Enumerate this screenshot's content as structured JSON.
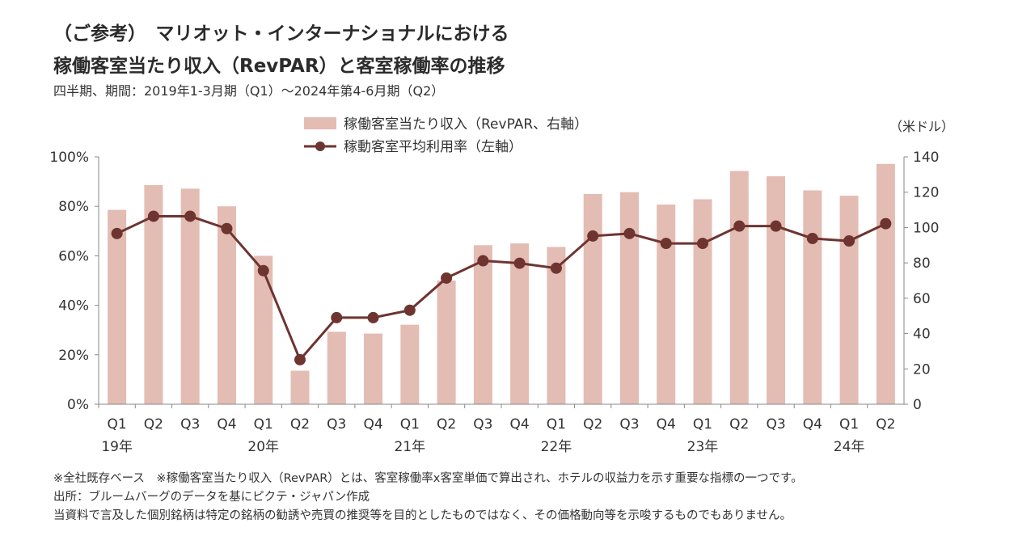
{
  "header": {
    "title_line1": "（ご参考）　マリオット・インターナショナルにおける",
    "title_line2": "稼働客室当たり収入（RevPAR）と客室稼働率の推移",
    "subtitle": "四半期、期間：2019年1-3月期（Q1）～2024年第4-6月期（Q2）"
  },
  "footnotes": {
    "note1": "※全社既存ベース　※稼働客室当たり収入（RevPAR）とは、客室稼働率x客室単価で算出され、ホテルの収益力を示す重要な指標の一つです。",
    "note2": "出所：ブルームバーグのデータを基にピクテ・ジャパン作成",
    "note3": "当資料で言及した個別銘柄は特定の銘柄の勧誘や売買の推奨等を目的としたものではなく、その価格動向等を示唆するものでもありません。"
  },
  "chart_data": {
    "type": "bar",
    "categories": [
      "Q1",
      "Q2",
      "Q3",
      "Q4",
      "Q1",
      "Q2",
      "Q3",
      "Q4",
      "Q1",
      "Q2",
      "Q3",
      "Q4",
      "Q1",
      "Q2",
      "Q3",
      "Q4",
      "Q1",
      "Q2",
      "Q3",
      "Q4",
      "Q1",
      "Q2"
    ],
    "year_labels": [
      {
        "label": "19年",
        "index": 0
      },
      {
        "label": "20年",
        "index": 4
      },
      {
        "label": "21年",
        "index": 8
      },
      {
        "label": "22年",
        "index": 12
      },
      {
        "label": "23年",
        "index": 16
      },
      {
        "label": "24年",
        "index": 20
      }
    ],
    "series": [
      {
        "name": "稼働客室当たり収入（RevPAR、右軸）",
        "type": "bar",
        "axis": "right",
        "color": "#e3bcb3",
        "values": [
          110,
          124,
          122,
          112,
          84,
          19,
          41,
          40,
          45,
          70,
          90,
          91,
          89,
          119,
          120,
          113,
          116,
          132,
          129,
          121,
          118,
          136
        ]
      },
      {
        "name": "稼動客室平均利用率（左軸）",
        "type": "line",
        "axis": "left",
        "color": "#6e3430",
        "values": [
          69,
          76,
          76,
          71,
          54,
          18,
          35,
          35,
          38,
          51,
          58,
          57,
          55,
          68,
          69,
          65,
          65,
          72,
          72,
          67,
          66,
          73
        ]
      }
    ],
    "y_left": {
      "min": 0,
      "max": 100,
      "ticks": [
        "0%",
        "20%",
        "40%",
        "60%",
        "80%",
        "100%"
      ]
    },
    "y_right": {
      "min": 0,
      "max": 140,
      "ticks": [
        "0",
        "20",
        "40",
        "60",
        "80",
        "100",
        "120",
        "140"
      ],
      "unit_label": "（米ドル）"
    },
    "legend_position": "top-center",
    "grid": false
  }
}
